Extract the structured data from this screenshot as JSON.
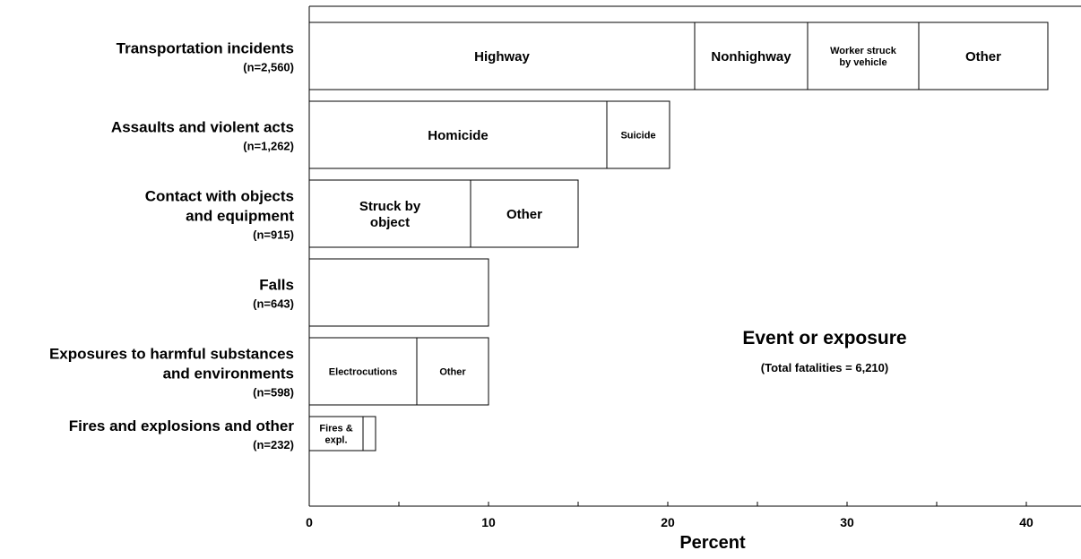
{
  "chart_data": {
    "type": "bar",
    "stacked": true,
    "orientation": "horizontal",
    "xlabel": "Percent",
    "ylabel": "",
    "xlim": [
      0,
      43
    ],
    "x_ticks": [
      "0",
      "10",
      "20",
      "30",
      "40"
    ],
    "grid": false,
    "annotation": {
      "title": "Event or exposure",
      "subtitle": "(Total fatalities = 6,210)"
    },
    "categories": [
      {
        "label": [
          "Transportation incidents"
        ],
        "n": "(n=2,560)",
        "segments": [
          {
            "label": [
              "Highway"
            ],
            "value": 21.5
          },
          {
            "label": [
              "Nonhighway"
            ],
            "value": 6.3
          },
          {
            "label": [
              "Worker struck",
              "by vehicle"
            ],
            "value": 6.2,
            "small": true
          },
          {
            "label": [
              "Other"
            ],
            "value": 7.2
          }
        ]
      },
      {
        "label": [
          "Assaults and violent acts"
        ],
        "n": "(n=1,262)",
        "segments": [
          {
            "label": [
              "Homicide"
            ],
            "value": 16.6
          },
          {
            "label": [
              "Suicide"
            ],
            "value": 3.5,
            "small": true
          }
        ]
      },
      {
        "label": [
          "Contact with objects",
          "and equipment"
        ],
        "n": "(n=915)",
        "segments": [
          {
            "label": [
              "Struck by",
              "object"
            ],
            "value": 9.0
          },
          {
            "label": [
              "Other"
            ],
            "value": 6.0
          }
        ]
      },
      {
        "label": [
          "Falls"
        ],
        "n": "(n=643)",
        "segments": [
          {
            "label": [],
            "value": 10.0
          }
        ]
      },
      {
        "label": [
          "Exposures to harmful substances",
          "and environments"
        ],
        "n": "(n=598)",
        "segments": [
          {
            "label": [
              "Electrocutions"
            ],
            "value": 6.0,
            "small": true
          },
          {
            "label": [
              "Other"
            ],
            "value": 4.0,
            "small": true
          }
        ]
      },
      {
        "label": [
          "Fires and explosions and other"
        ],
        "n": "(n=232)",
        "segments": [
          {
            "label": [
              "Fires &",
              "expl."
            ],
            "value": 3.0,
            "small": true
          },
          {
            "label": [],
            "value": 0.7
          }
        ]
      }
    ]
  }
}
